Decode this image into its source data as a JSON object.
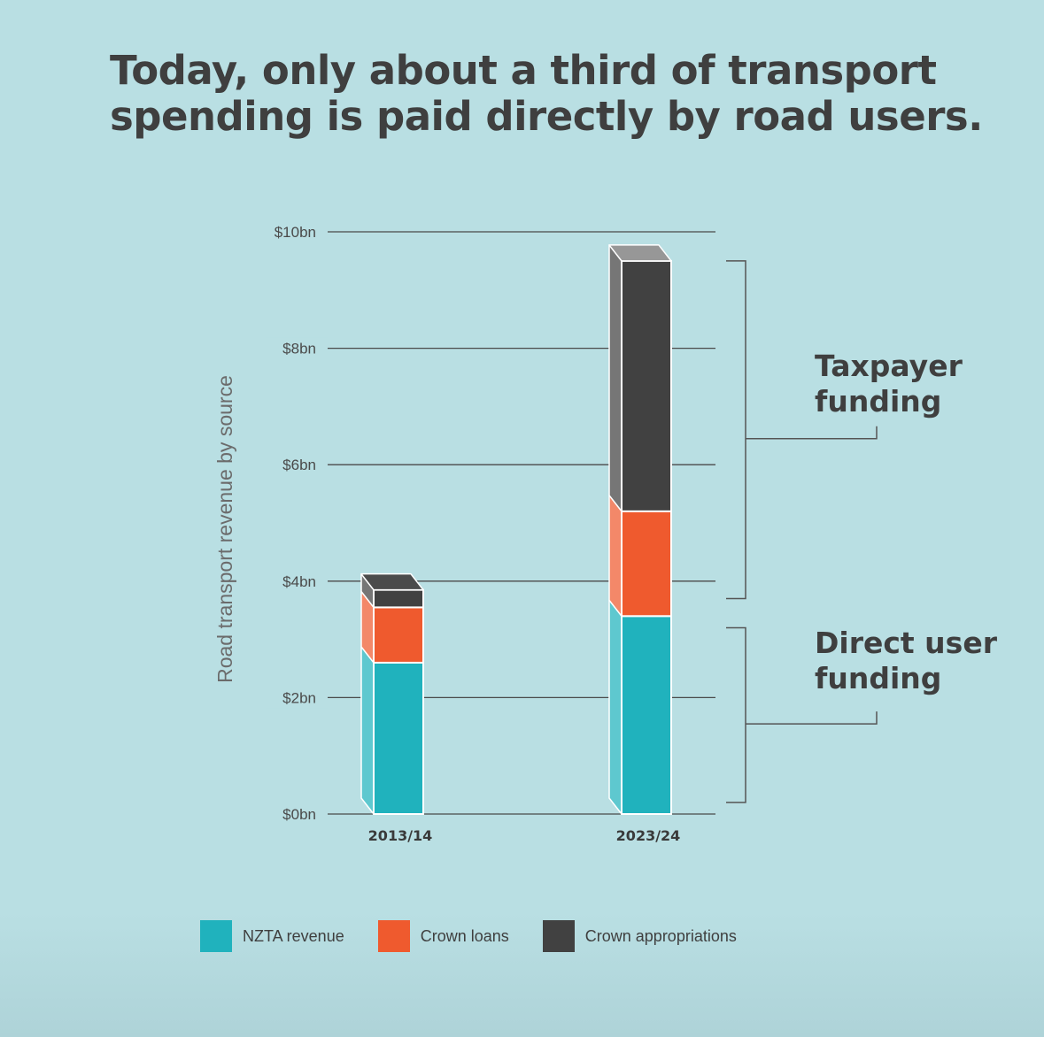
{
  "title_line1": "Today, only about a third of transport",
  "title_line2": "spending is paid directly by road users.",
  "chart_data": {
    "type": "bar",
    "stacked": true,
    "categories": [
      "2013/14",
      "2023/24"
    ],
    "series": [
      {
        "name": "NZTA revenue",
        "values": [
          2.6,
          3.4
        ],
        "color": "#20b2bd"
      },
      {
        "name": "Crown loans",
        "values": [
          0.95,
          1.8
        ],
        "color": "#ef5a2e"
      },
      {
        "name": "Crown appropriations",
        "values": [
          0.3,
          4.3
        ],
        "color": "#414141"
      }
    ],
    "ylabel": "Road transport revenue by source",
    "yticks": [
      "$0bn",
      "$2bn",
      "$4bn",
      "$6bn",
      "$8bn",
      "$10bn"
    ],
    "ylim": [
      0,
      10
    ],
    "grid": true,
    "legend_position": "bottom",
    "annotations": [
      {
        "lines": [
          "Taxpayer",
          "funding"
        ],
        "range": [
          3.7,
          9.5
        ]
      },
      {
        "lines": [
          "Direct user",
          "funding"
        ],
        "range": [
          0.2,
          3.2
        ]
      }
    ]
  }
}
